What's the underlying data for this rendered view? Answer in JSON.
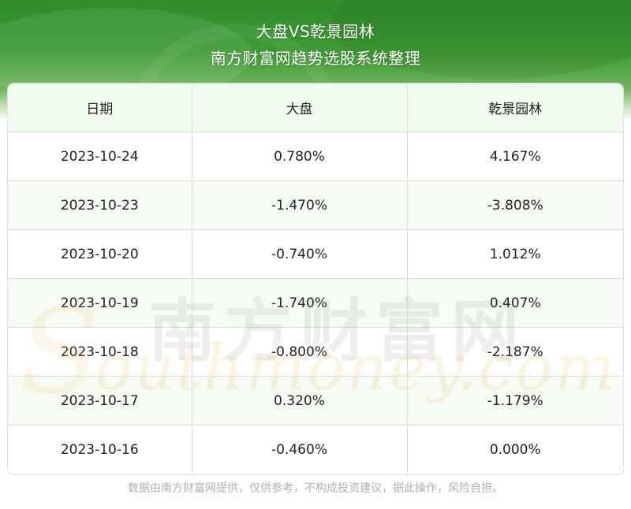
{
  "header": {
    "title": "大盘VS乾景园林",
    "subtitle": "南方财富网趋势选股系统整理"
  },
  "table": {
    "columns": [
      "日期",
      "大盘",
      "乾景园林"
    ],
    "rows": [
      [
        "2023-10-24",
        "0.780%",
        "4.167%"
      ],
      [
        "2023-10-23",
        "-1.470%",
        "-3.808%"
      ],
      [
        "2023-10-20",
        "-0.740%",
        "1.012%"
      ],
      [
        "2023-10-19",
        "-1.740%",
        "0.407%"
      ],
      [
        "2023-10-18",
        "-0.800%",
        "-2.187%"
      ],
      [
        "2023-10-17",
        "0.320%",
        "-1.179%"
      ],
      [
        "2023-10-16",
        "-0.460%",
        "0.000%"
      ]
    ]
  },
  "watermark": {
    "chinese": "南方财富网",
    "english_initial": "S",
    "english": "outhmoney.com"
  },
  "footer": {
    "disclaimer": "数据由南方财富网提供，仅供参考，不构成投资建议，据此操作，风险自担。"
  },
  "colors": {
    "banner_green": "#3f9a36",
    "header_row_bg": "#f1faee",
    "stripe_bg": "#f6fcf4"
  }
}
